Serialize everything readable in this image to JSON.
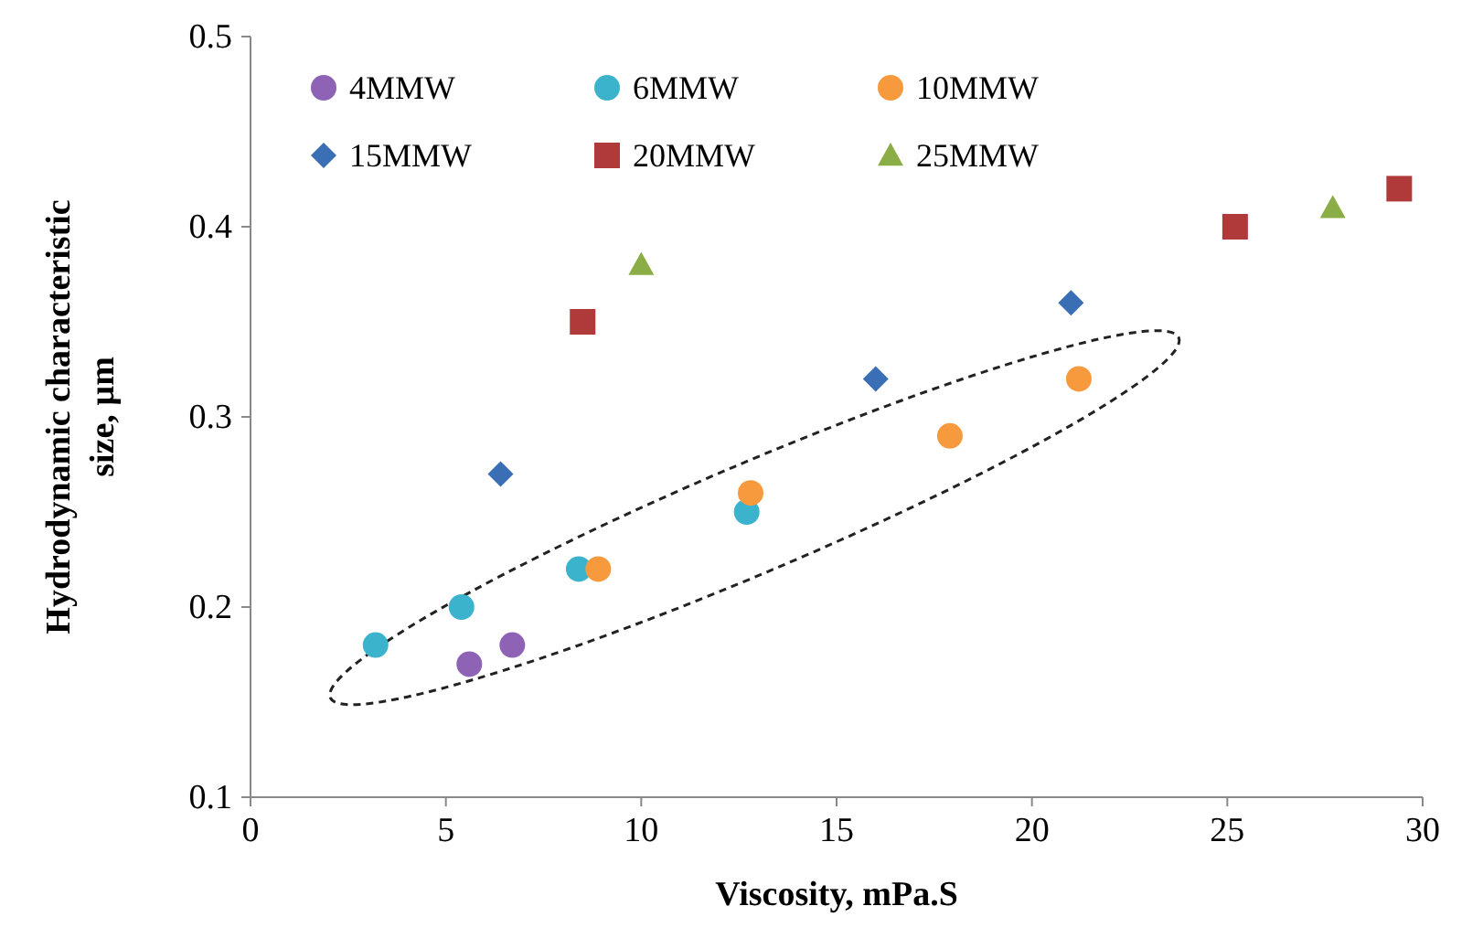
{
  "chart_data": {
    "type": "scatter",
    "xlabel": "Viscosity, mPa.S",
    "ylabel": "Hydrodynamic characteristic size, µm",
    "xlim": [
      0,
      30
    ],
    "xticks": [
      0,
      5,
      10,
      15,
      20,
      25,
      30
    ],
    "ylim": [
      0.1,
      0.5
    ],
    "yticks": [
      0.1,
      0.2,
      0.3,
      0.4,
      0.5
    ],
    "legend": "top left",
    "grid": false,
    "series": [
      {
        "name": "4MMW",
        "color": "#8e63b5",
        "marker": "circle",
        "x": [
          5.6,
          6.7
        ],
        "values": [
          0.17,
          0.18
        ]
      },
      {
        "name": "6MMW",
        "color": "#3bb3cc",
        "marker": "circle",
        "x": [
          3.2,
          5.4,
          8.4,
          12.7
        ],
        "values": [
          0.18,
          0.2,
          0.22,
          0.25
        ]
      },
      {
        "name": "10MMW",
        "color": "#f79a3e",
        "marker": "circle",
        "x": [
          8.9,
          12.8,
          17.9,
          21.2
        ],
        "values": [
          0.22,
          0.26,
          0.29,
          0.32
        ]
      },
      {
        "name": "15MMW",
        "color": "#3a6fb5",
        "marker": "diamond",
        "x": [
          6.4,
          16,
          21
        ],
        "values": [
          0.27,
          0.32,
          0.36
        ]
      },
      {
        "name": "20MMW",
        "color": "#b03a3a",
        "marker": "square",
        "x": [
          8.5,
          25.2,
          29.4
        ],
        "values": [
          0.35,
          0.4,
          0.42
        ]
      },
      {
        "name": "25MMW",
        "color": "#8bad45",
        "marker": "triangle",
        "x": [
          10,
          27.7
        ],
        "values": [
          0.38,
          0.41
        ]
      }
    ]
  }
}
